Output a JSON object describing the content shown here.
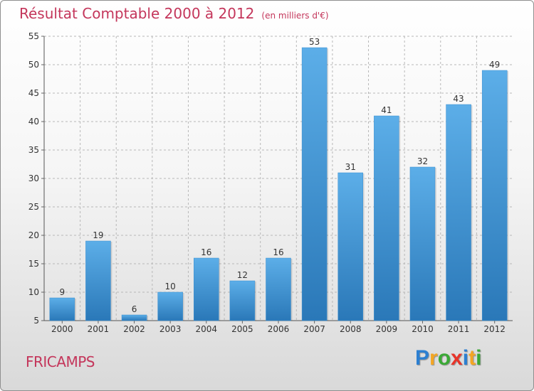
{
  "header": {
    "title": "Résultat Comptable 2000 à 2012",
    "unit": "(en milliers d'€)"
  },
  "footer": {
    "commune": "FRICAMPS",
    "logo_letters": [
      "P",
      "r",
      "o",
      "x",
      "i",
      "t",
      "i"
    ],
    "logo_colors": [
      "#2c7fd1",
      "#f4a623",
      "#3aa935",
      "#e8342a",
      "#2c7fd1",
      "#f4a623",
      "#3aa935"
    ]
  },
  "colors": {
    "bar_top": "#5caee8",
    "bar_bottom": "#2a78b8",
    "grid": "#b8b8b8",
    "axis_text": "#333333"
  },
  "chart_data": {
    "type": "bar",
    "categories": [
      "2000",
      "2001",
      "2002",
      "2003",
      "2004",
      "2005",
      "2006",
      "2007",
      "2008",
      "2009",
      "2010",
      "2011",
      "2012"
    ],
    "values": [
      9,
      19,
      6,
      10,
      16,
      12,
      16,
      53,
      31,
      41,
      32,
      43,
      49
    ],
    "ylim": [
      5,
      55
    ],
    "yticks": [
      5,
      10,
      15,
      20,
      25,
      30,
      35,
      40,
      45,
      50,
      55
    ],
    "grid": true
  }
}
